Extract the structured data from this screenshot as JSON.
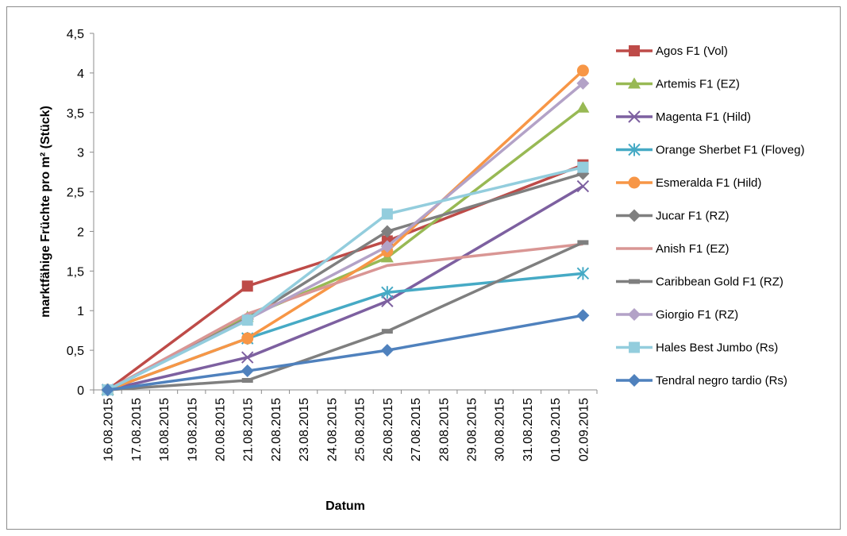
{
  "chart_data": {
    "type": "line",
    "title": "",
    "xlabel": "Datum",
    "ylabel": "marktfähige Früchte pro m² (Stück)",
    "ylim": [
      0,
      4.5
    ],
    "y_ticks": [
      "0",
      "0,5",
      "1",
      "1,5",
      "2",
      "2,5",
      "3",
      "3,5",
      "4",
      "4,5"
    ],
    "x_ticks": [
      "16.08.2015",
      "17.08.2015",
      "18.08.2015",
      "19.08.2015",
      "20.08.2015",
      "21.08.2015",
      "22.08.2015",
      "23.08.2015",
      "24.08.2015",
      "25.08.2015",
      "26.08.2015",
      "27.08.2015",
      "28.08.2015",
      "29.08.2015",
      "30.08.2015",
      "31.08.2015",
      "01.09.2015",
      "02.09.2015"
    ],
    "x": [
      "16.08.2015",
      "21.08.2015",
      "26.08.2015",
      "02.09.2015"
    ],
    "grid": false,
    "legend_position": "right",
    "series": [
      {
        "name": "Agos F1 (Vol)",
        "color": "#BE4B48",
        "marker": "square",
        "values": [
          0,
          1.31,
          1.88,
          2.84
        ]
      },
      {
        "name": "Artemis F1 (EZ)",
        "color": "#98B954",
        "marker": "triangle",
        "values": [
          0,
          0.92,
          1.67,
          3.56
        ]
      },
      {
        "name": "Magenta F1 (Hild)",
        "color": "#7D60A0",
        "marker": "x",
        "values": [
          0,
          0.41,
          1.12,
          2.57
        ]
      },
      {
        "name": "Orange Sherbet F1 (Floveg)",
        "color": "#46AAC5",
        "marker": "star",
        "values": [
          0,
          0.65,
          1.23,
          1.47
        ]
      },
      {
        "name": "Esmeralda F1 (Hild)",
        "color": "#F79646",
        "marker": "circle",
        "values": [
          0,
          0.65,
          1.75,
          4.03
        ]
      },
      {
        "name": "Jucar F1 (RZ)",
        "color": "#7F7F7F",
        "marker": "diamond",
        "values": [
          0,
          0.9,
          2.0,
          2.73
        ]
      },
      {
        "name": "Anish F1 (EZ)",
        "color": "#D99694",
        "marker": "none",
        "values": [
          0,
          0.96,
          1.57,
          1.84
        ]
      },
      {
        "name": "Caribbean Gold F1 (RZ)",
        "color": "#7F7F7F",
        "marker": "dash",
        "values": [
          0,
          0.12,
          0.74,
          1.86
        ]
      },
      {
        "name": "Giorgio F1 (RZ)",
        "color": "#B3A2C7",
        "marker": "diamond",
        "values": [
          0,
          0.89,
          1.81,
          3.87
        ]
      },
      {
        "name": "Hales Best Jumbo (Rs)",
        "color": "#93CDDD",
        "marker": "square",
        "values": [
          0,
          0.88,
          2.22,
          2.81
        ]
      },
      {
        "name": "Tendral negro tardio (Rs)",
        "color": "#4F81BD",
        "marker": "diamond",
        "values": [
          0,
          0.24,
          0.5,
          0.94
        ]
      }
    ]
  }
}
